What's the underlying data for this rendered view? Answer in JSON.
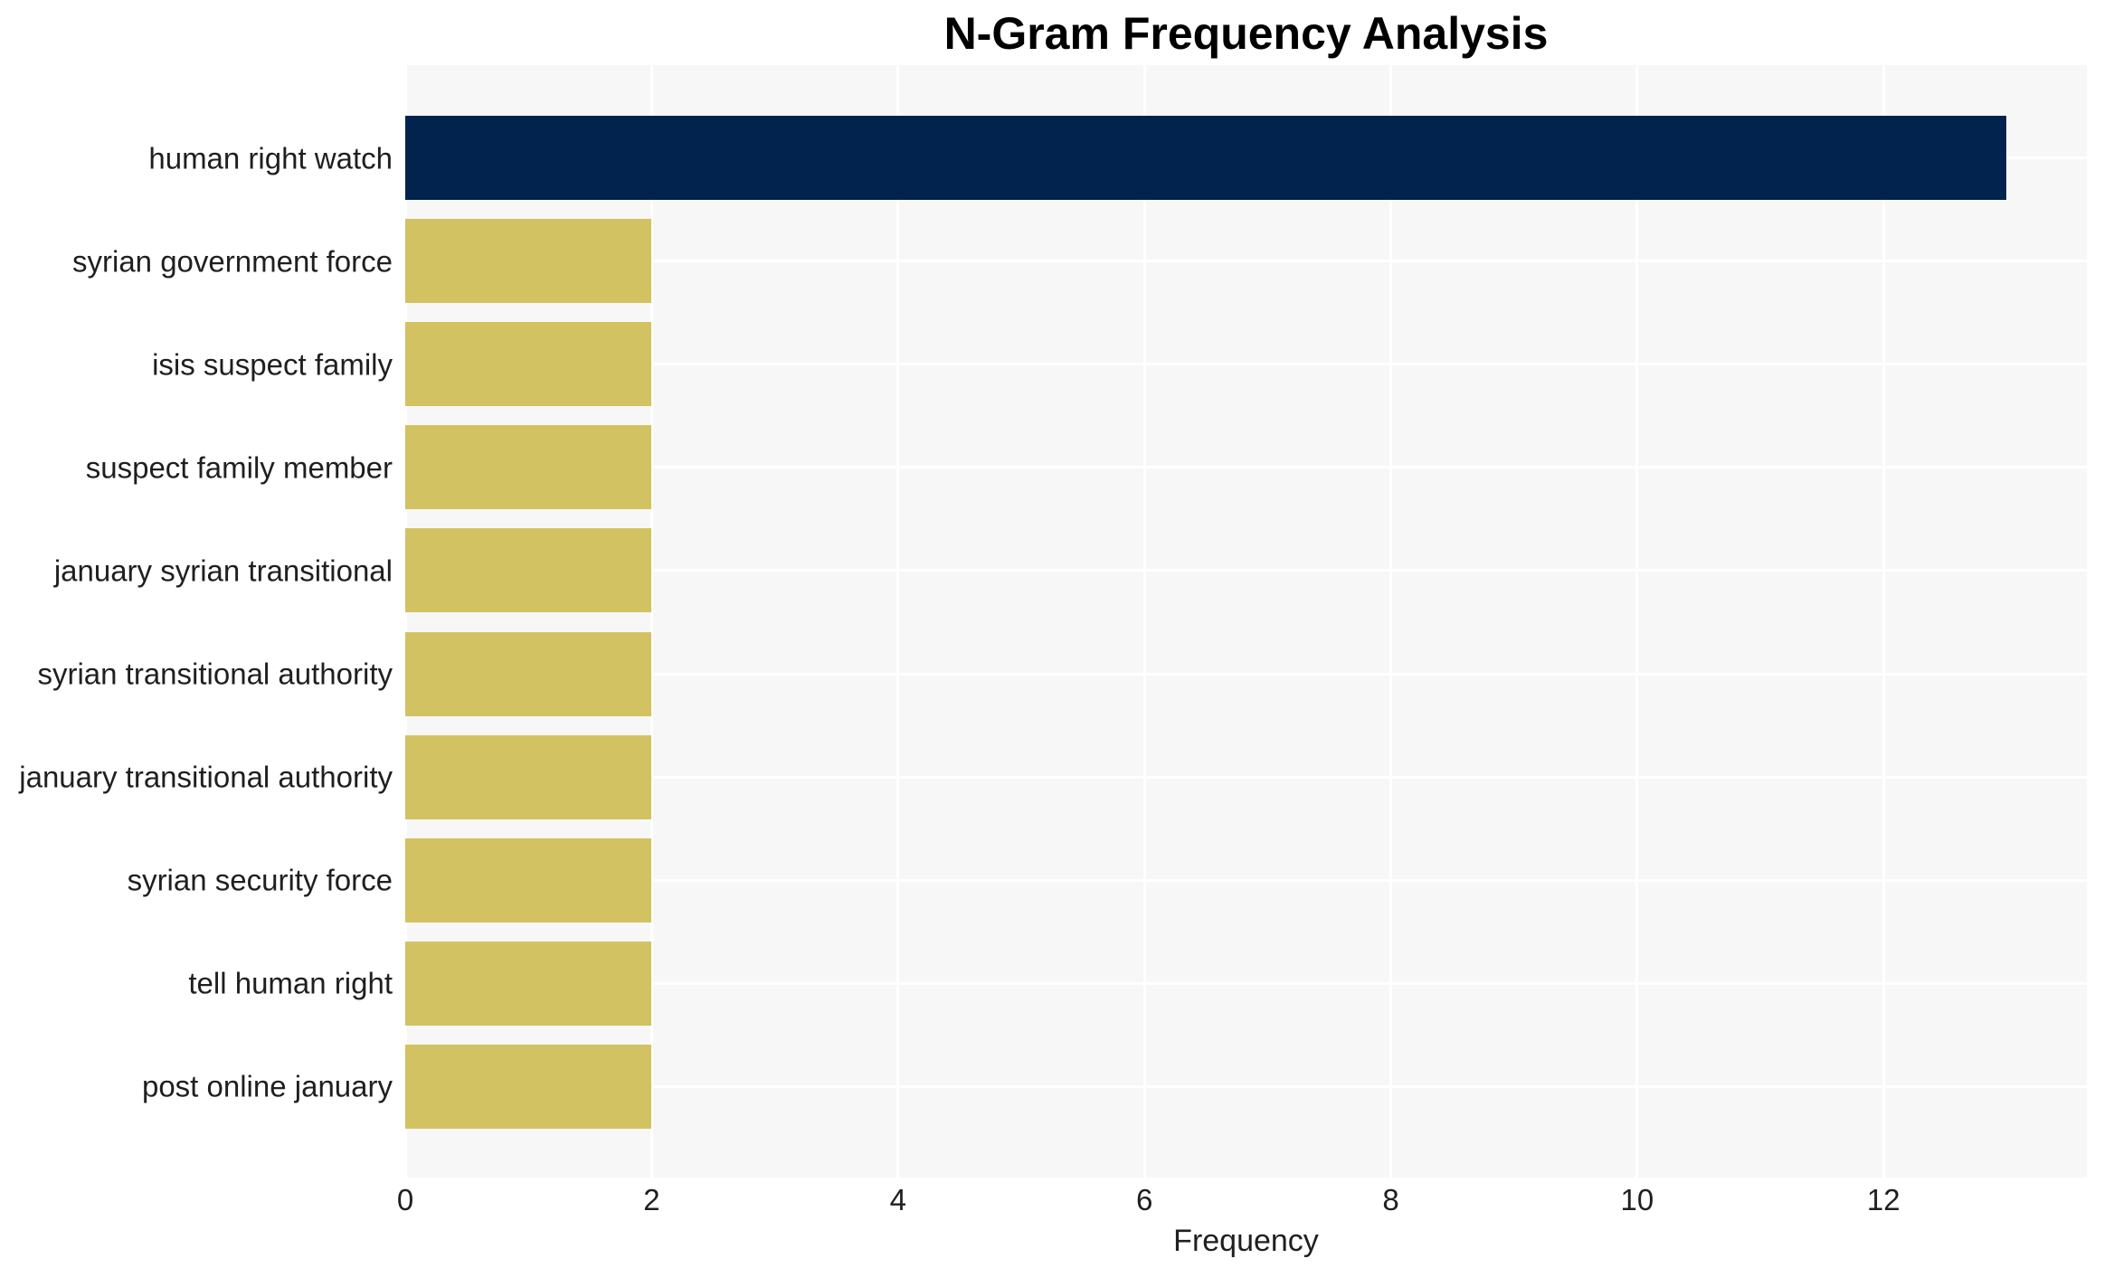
{
  "chart_data": {
    "type": "bar",
    "orientation": "horizontal",
    "title": "N-Gram Frequency Analysis",
    "xlabel": "Frequency",
    "ylabel": "",
    "categories": [
      "human right watch",
      "syrian government force",
      "isis suspect family",
      "suspect family member",
      "january syrian transitional",
      "syrian transitional authority",
      "january transitional authority",
      "syrian security force",
      "tell human right",
      "post online january"
    ],
    "values": [
      13,
      2,
      2,
      2,
      2,
      2,
      2,
      2,
      2,
      2
    ],
    "bar_colors": [
      "#02234d",
      "#d3c262",
      "#d3c262",
      "#d3c262",
      "#d3c262",
      "#d3c262",
      "#d3c262",
      "#d3c262",
      "#d3c262",
      "#d3c262"
    ],
    "xticks": [
      "0",
      "2",
      "4",
      "6",
      "8",
      "10",
      "12"
    ],
    "xtick_values": [
      0,
      2,
      4,
      6,
      8,
      10,
      12
    ],
    "xlim": [
      0,
      13.65
    ],
    "grid": true,
    "legend": false,
    "colors": {
      "highlight": "#02234d",
      "default": "#d3c262",
      "plot_background": "#f7f7f7",
      "gridline": "#ffffff",
      "page_background": "#ffffff",
      "text": "#1f1f1f"
    }
  }
}
